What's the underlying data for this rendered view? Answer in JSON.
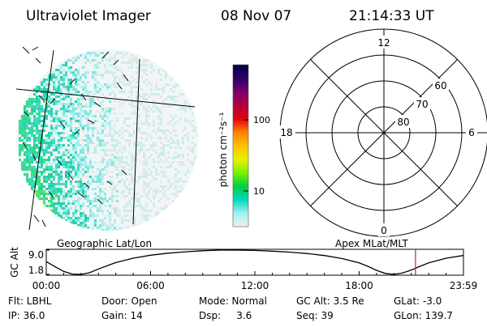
{
  "header": {
    "title": "Ultraviolet Imager",
    "date": "08 Nov 07",
    "time": "21:14:33 UT"
  },
  "colorbar": {
    "label": "photon cm⁻²s⁻¹",
    "ticks": [
      "100",
      "10"
    ],
    "scale": "log",
    "colors": [
      "#000040",
      "#2a0066",
      "#7a0070",
      "#b00040",
      "#e00010",
      "#ff8000",
      "#ffc000",
      "#e8f000",
      "#80f000",
      "#00d040",
      "#00d8c0",
      "#a0f0f0",
      "#f0f0f0"
    ]
  },
  "image_panel": {
    "label": "Geographic Lat/Lon"
  },
  "polar_panel": {
    "label": "Apex MLat/MLT",
    "mlt_labels": [
      "12",
      "18",
      "6",
      "0"
    ],
    "mlat_labels": [
      "60",
      "70",
      "80"
    ]
  },
  "altitude_plot": {
    "ylabel": "GC Alt",
    "yticks": [
      "9.0",
      "1.8"
    ],
    "xticks": [
      "00:00",
      "06:00",
      "12:00",
      "18:00",
      "23:59"
    ],
    "marker_color": "#d02020"
  },
  "chart_data": {
    "type": "line",
    "title": "",
    "xlabel": "",
    "ylabel": "GC Alt",
    "xlim": [
      0,
      24
    ],
    "ylim": [
      1.8,
      9.0
    ],
    "x": [
      0,
      0.5,
      1,
      1.5,
      2,
      2.5,
      3,
      4,
      5,
      6,
      7,
      8,
      9,
      10,
      11,
      12,
      13,
      14,
      15,
      16,
      17,
      18,
      18.5,
      19,
      19.5,
      20,
      20.5,
      21,
      21.5,
      22,
      23,
      23.98
    ],
    "series": [
      {
        "values": [
          5.6,
          4.1,
          2.7,
          1.9,
          1.8,
          2.3,
          3.4,
          5.3,
          6.6,
          7.5,
          8.1,
          8.5,
          8.8,
          9.0,
          9.0,
          8.9,
          8.7,
          8.4,
          8.0,
          7.4,
          6.5,
          5.2,
          4.2,
          3.0,
          2.1,
          1.8,
          2.2,
          3.1,
          4.2,
          5.2,
          6.6,
          7.4
        ]
      }
    ],
    "marker_time": 21.24
  },
  "info": {
    "row1": {
      "filter": "Flt: LBHL",
      "door": "Door: Open",
      "mode": "Mode: Normal",
      "gc_alt": "GC Alt: 3.5 Re",
      "glat": "GLat: -3.0"
    },
    "row2": {
      "ip": "IP: 36.0",
      "gain": "Gain: 14",
      "dsp": "Dsp:     3.6",
      "seq": "Seq: 39",
      "glon": "GLon: 139.7"
    }
  }
}
